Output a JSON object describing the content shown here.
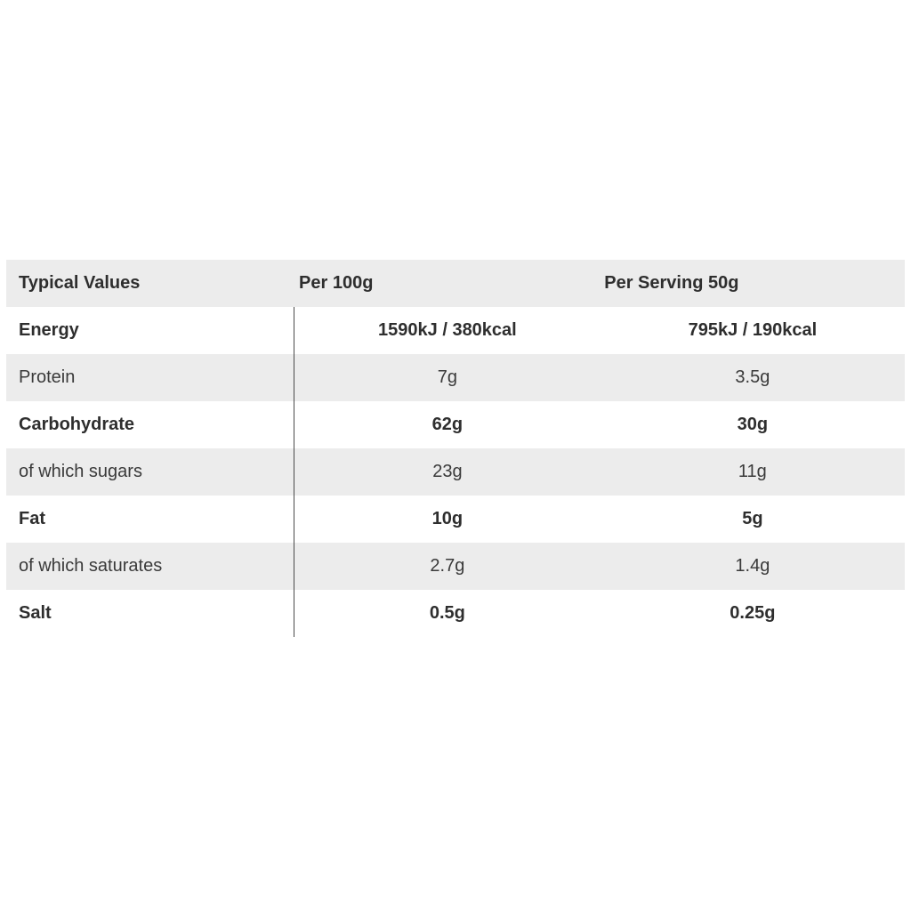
{
  "nutrition_table": {
    "type": "table",
    "background_color": "#ffffff",
    "stripe_color": "#ececec",
    "divider_color": "#4a4a4a",
    "text_color": "#3a3a3a",
    "bold_text_color": "#2e2e2e",
    "font_family": "Arial",
    "cell_fontsize": 20,
    "columns": [
      {
        "label": "Typical Values",
        "align": "left",
        "width_pct": 32
      },
      {
        "label": "Per 100g",
        "align": "center",
        "width_pct": 34
      },
      {
        "label": "Per Serving 50g",
        "align": "center",
        "width_pct": 34
      }
    ],
    "rows": [
      {
        "label": "Energy",
        "bold": true,
        "per100": "1590kJ / 380kcal",
        "perServing": "795kJ / 190kcal"
      },
      {
        "label": "Protein",
        "bold": false,
        "per100": "7g",
        "perServing": "3.5g"
      },
      {
        "label": "Carbohydrate",
        "bold": true,
        "per100": "62g",
        "perServing": "30g"
      },
      {
        "label": "of which sugars",
        "bold": false,
        "per100": "23g",
        "perServing": "11g"
      },
      {
        "label": "Fat",
        "bold": true,
        "per100": "10g",
        "perServing": "5g"
      },
      {
        "label": "of which saturates",
        "bold": false,
        "per100": "2.7g",
        "perServing": "1.4g"
      },
      {
        "label": "Salt",
        "bold": true,
        "per100": "0.5g",
        "perServing": "0.25g"
      }
    ]
  }
}
